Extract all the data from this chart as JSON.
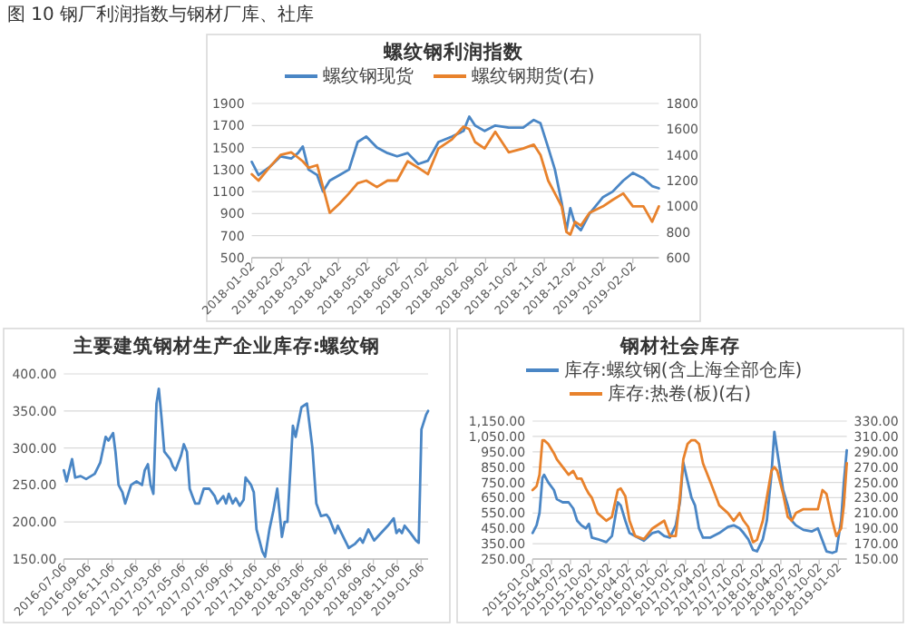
{
  "chart_data": [
    {
      "type": "line",
      "title": "螺纹钢利润指数",
      "annotations": [
        "图 10 钢厂利润指数与钢材厂库、社库"
      ],
      "legend": "top",
      "grid": "y",
      "x": [
        "2018-01-02",
        "2018-01-09",
        "2018-01-20",
        "2018-02-01",
        "2018-02-12",
        "2018-02-19",
        "2018-02-24",
        "2018-03-02",
        "2018-03-11",
        "2018-03-17",
        "2018-03-24",
        "2018-04-03",
        "2018-04-13",
        "2018-04-22",
        "2018-05-01",
        "2018-05-12",
        "2018-05-23",
        "2018-06-02",
        "2018-06-13",
        "2018-06-24",
        "2018-07-04",
        "2018-07-15",
        "2018-07-29",
        "2018-08-10",
        "2018-08-16",
        "2018-08-22",
        "2018-09-01",
        "2018-09-12",
        "2018-09-26",
        "2018-10-11",
        "2018-10-22",
        "2018-10-29",
        "2018-11-06",
        "2018-11-13",
        "2018-11-20",
        "2018-11-25",
        "2018-11-29",
        "2018-12-04",
        "2018-12-10",
        "2018-12-19",
        "2019-01-02",
        "2019-01-12",
        "2019-01-23",
        "2019-02-02",
        "2019-02-13",
        "2019-02-22",
        "2019-03-01"
      ],
      "xlim": [
        "2018-01-02",
        "2019-03-01"
      ],
      "xticks": [
        "2018-01-02",
        "2018-02-02",
        "2018-03-02",
        "2018-04-02",
        "2018-05-02",
        "2018-06-02",
        "2018-07-02",
        "2018-08-02",
        "2018-09-02",
        "2018-10-02",
        "2018-11-02",
        "2018-12-02",
        "2019-01-02",
        "2019-02-02"
      ],
      "ylim": [
        500,
        1900
      ],
      "yticks": [
        500,
        700,
        900,
        1100,
        1300,
        1500,
        1700,
        1900
      ],
      "y2lim": [
        600,
        1800
      ],
      "y2ticks": [
        600,
        800,
        1000,
        1200,
        1400,
        1600,
        1800
      ],
      "series": [
        {
          "name": "螺纹钢现货",
          "color": "#4a86c5",
          "values": [
            1370,
            1250,
            1320,
            1420,
            1400,
            1450,
            1510,
            1300,
            1250,
            1100,
            1200,
            1250,
            1300,
            1550,
            1600,
            1500,
            1450,
            1420,
            1450,
            1350,
            1380,
            1550,
            1600,
            1650,
            1780,
            1700,
            1650,
            1700,
            1680,
            1680,
            1750,
            1720,
            1500,
            1300,
            1000,
            750,
            950,
            800,
            750,
            900,
            1050,
            1100,
            1200,
            1270,
            1220,
            1150,
            1130
          ]
        },
        {
          "name": "螺纹钢期货(右)",
          "color": "#e8822c",
          "axis": "y2",
          "values": [
            1250,
            1200,
            1300,
            1400,
            1420,
            1380,
            1350,
            1300,
            1320,
            1150,
            950,
            1020,
            1100,
            1180,
            1200,
            1150,
            1200,
            1200,
            1350,
            1300,
            1250,
            1450,
            1520,
            1620,
            1600,
            1500,
            1450,
            1580,
            1420,
            1450,
            1480,
            1400,
            1200,
            1100,
            1000,
            800,
            780,
            880,
            850,
            950,
            1000,
            1050,
            1100,
            1000,
            1000,
            880,
            1000
          ]
        }
      ]
    },
    {
      "type": "line",
      "title": "主要建筑钢材生产企业库存:螺纹钢",
      "grid": "y",
      "x": [
        "2016-07-06",
        "2016-07-13",
        "2016-07-20",
        "2016-07-27",
        "2016-08-04",
        "2016-08-18",
        "2016-09-01",
        "2016-09-23",
        "2016-10-07",
        "2016-10-21",
        "2016-10-28",
        "2016-11-09",
        "2016-11-15",
        "2016-11-23",
        "2016-12-03",
        "2016-12-10",
        "2016-12-25",
        "2017-01-08",
        "2017-01-22",
        "2017-01-29",
        "2017-02-06",
        "2017-02-13",
        "2017-02-20",
        "2017-02-28",
        "2017-03-06",
        "2017-03-13",
        "2017-03-20",
        "2017-04-04",
        "2017-04-11",
        "2017-04-18",
        "2017-05-02",
        "2017-05-09",
        "2017-05-17",
        "2017-05-24",
        "2017-05-31",
        "2017-06-07",
        "2017-06-17",
        "2017-06-29",
        "2017-07-13",
        "2017-07-27",
        "2017-08-03",
        "2017-08-18",
        "2017-08-25",
        "2017-09-01",
        "2017-09-11",
        "2017-09-19",
        "2017-09-29",
        "2017-10-09",
        "2017-10-14",
        "2017-10-28",
        "2017-11-04",
        "2017-11-11",
        "2017-11-26",
        "2017-12-03",
        "2017-12-14",
        "2017-12-24",
        "2018-01-03",
        "2018-01-15",
        "2018-01-22",
        "2018-01-29",
        "2018-02-12",
        "2018-02-19",
        "2018-03-06",
        "2018-03-20",
        "2018-04-03",
        "2018-04-13",
        "2018-04-25",
        "2018-05-09",
        "2018-05-16",
        "2018-05-31",
        "2018-06-07",
        "2018-06-21",
        "2018-07-05",
        "2018-07-20",
        "2018-08-03",
        "2018-08-10",
        "2018-08-24",
        "2018-09-08",
        "2018-09-22",
        "2018-10-13",
        "2018-10-28",
        "2018-11-04",
        "2018-11-11",
        "2018-11-18",
        "2018-11-25",
        "2018-12-10",
        "2018-12-24",
        "2018-12-31",
        "2019-01-07",
        "2019-01-19",
        "2019-01-24"
      ],
      "xlim": [
        "2016-07-06",
        "2019-01-24"
      ],
      "xticks": [
        "2016-07-06",
        "2016-09-06",
        "2016-11-06",
        "2017-01-06",
        "2017-03-06",
        "2017-05-06",
        "2017-07-06",
        "2017-09-06",
        "2017-11-06",
        "2018-01-06",
        "2018-03-06",
        "2018-05-06",
        "2018-07-06",
        "2018-09-06",
        "2018-11-06",
        "2019-01-06"
      ],
      "ylim": [
        150,
        400
      ],
      "yticks": [
        {
          "value": 150,
          "label": "150.00"
        },
        {
          "value": 200,
          "label": "200.00"
        },
        {
          "value": 250,
          "label": "250.00"
        },
        {
          "value": 300,
          "label": "300.00"
        },
        {
          "value": 350,
          "label": "350.00"
        },
        {
          "value": 400,
          "label": "400.00"
        }
      ],
      "series": [
        {
          "color": "#4a86c5",
          "values": [
            270,
            255,
            270,
            285,
            260,
            262,
            258,
            265,
            280,
            315,
            310,
            320,
            295,
            250,
            240,
            225,
            250,
            255,
            250,
            270,
            278,
            250,
            238,
            360,
            380,
            340,
            295,
            285,
            275,
            270,
            290,
            305,
            295,
            245,
            235,
            225,
            225,
            245,
            245,
            235,
            225,
            235,
            225,
            238,
            225,
            232,
            222,
            230,
            260,
            250,
            240,
            190,
            160,
            153,
            190,
            215,
            245,
            180,
            200,
            200,
            330,
            315,
            355,
            360,
            300,
            225,
            208,
            210,
            205,
            185,
            195,
            180,
            165,
            170,
            178,
            172,
            190,
            175,
            183,
            195,
            205,
            185,
            190,
            185,
            195,
            185,
            175,
            172,
            325,
            345,
            350
          ]
        }
      ]
    },
    {
      "type": "line",
      "title": "钢材社会库存",
      "legend": "top",
      "grid": "y",
      "x": [
        "2015-01-02",
        "2015-01-21",
        "2015-02-04",
        "2015-02-18",
        "2015-02-26",
        "2015-03-18",
        "2015-04-14",
        "2015-04-28",
        "2015-05-26",
        "2015-06-23",
        "2015-07-15",
        "2015-08-03",
        "2015-08-23",
        "2015-09-14",
        "2015-09-28",
        "2015-10-12",
        "2015-11-08",
        "2015-12-20",
        "2016-01-16",
        "2016-02-13",
        "2016-02-27",
        "2016-03-20",
        "2016-04-09",
        "2016-05-06",
        "2016-06-17",
        "2016-07-28",
        "2016-08-25",
        "2016-09-22",
        "2016-10-19",
        "2016-11-16",
        "2016-12-06",
        "2016-12-22",
        "2017-01-11",
        "2017-01-30",
        "2017-02-16",
        "2017-03-07",
        "2017-03-26",
        "2017-05-01",
        "2017-06-12",
        "2017-07-23",
        "2017-08-20",
        "2017-09-17",
        "2017-10-06",
        "2017-10-28",
        "2017-11-20",
        "2017-12-09",
        "2018-01-06",
        "2018-01-25",
        "2018-02-16",
        "2018-03-02",
        "2018-03-16",
        "2018-04-13",
        "2018-05-05",
        "2018-05-24",
        "2018-06-13",
        "2018-07-19",
        "2018-08-29",
        "2018-09-26",
        "2018-10-18",
        "2018-11-06",
        "2018-12-04",
        "2018-12-23",
        "2019-01-15",
        "2019-01-28",
        "2019-02-11"
      ],
      "xlim": [
        "2015-01-02",
        "2019-02-11"
      ],
      "xticks": [
        "2015-01-02",
        "2015-04-02",
        "2015-07-02",
        "2015-10-02",
        "2016-01-02",
        "2016-04-02",
        "2016-07-02",
        "2016-10-02",
        "2017-01-02",
        "2017-04-02",
        "2017-07-02",
        "2017-10-02",
        "2018-01-02",
        "2018-04-02",
        "2018-07-02",
        "2018-10-02",
        "2019-01-02"
      ],
      "ylim": [
        250,
        1150
      ],
      "yticks": [
        {
          "value": 250,
          "label": "250.00"
        },
        {
          "value": 350,
          "label": "350.00"
        },
        {
          "value": 450,
          "label": "450.00"
        },
        {
          "value": 550,
          "label": "550.00"
        },
        {
          "value": 650,
          "label": "650.00"
        },
        {
          "value": 750,
          "label": "750.00"
        },
        {
          "value": 850,
          "label": "850.00"
        },
        {
          "value": 950,
          "label": "950.00"
        },
        {
          "value": 1050,
          "label": "1,050.00"
        },
        {
          "value": 1150,
          "label": "1,150.00"
        }
      ],
      "y2lim": [
        150,
        330
      ],
      "y2ticks": [
        {
          "value": 150,
          "label": "150.00"
        },
        {
          "value": 170,
          "label": "170.00"
        },
        {
          "value": 190,
          "label": "190.00"
        },
        {
          "value": 210,
          "label": "210.00"
        },
        {
          "value": 230,
          "label": "230.00"
        },
        {
          "value": 250,
          "label": "250.00"
        },
        {
          "value": 270,
          "label": "270.00"
        },
        {
          "value": 290,
          "label": "290.00"
        },
        {
          "value": 310,
          "label": "310.00"
        },
        {
          "value": 330,
          "label": "330.00"
        }
      ],
      "series": [
        {
          "name": "库存:螺纹钢(含上海全部仓库)",
          "color": "#4a86c5",
          "values": [
            420,
            470,
            550,
            780,
            800,
            750,
            700,
            640,
            620,
            620,
            580,
            500,
            470,
            450,
            480,
            390,
            380,
            360,
            400,
            620,
            600,
            500,
            420,
            400,
            370,
            420,
            430,
            400,
            390,
            470,
            620,
            880,
            760,
            650,
            600,
            450,
            390,
            390,
            420,
            460,
            470,
            450,
            420,
            380,
            310,
            300,
            380,
            500,
            800,
            1080,
            950,
            700,
            600,
            500,
            470,
            440,
            430,
            450,
            370,
            300,
            290,
            300,
            500,
            750,
            960
          ]
        },
        {
          "name": "库存:热卷(板)(右)",
          "color": "#e8822c",
          "axis": "y2",
          "values": [
            240,
            245,
            260,
            305,
            305,
            300,
            288,
            280,
            270,
            260,
            265,
            255,
            255,
            242,
            235,
            230,
            210,
            200,
            205,
            240,
            242,
            232,
            200,
            180,
            176,
            190,
            195,
            200,
            180,
            180,
            230,
            280,
            300,
            305,
            305,
            300,
            275,
            250,
            220,
            210,
            200,
            210,
            200,
            192,
            172,
            175,
            200,
            230,
            265,
            270,
            265,
            235,
            205,
            200,
            210,
            215,
            215,
            215,
            240,
            235,
            200,
            180,
            190,
            220,
            275
          ]
        }
      ]
    }
  ]
}
